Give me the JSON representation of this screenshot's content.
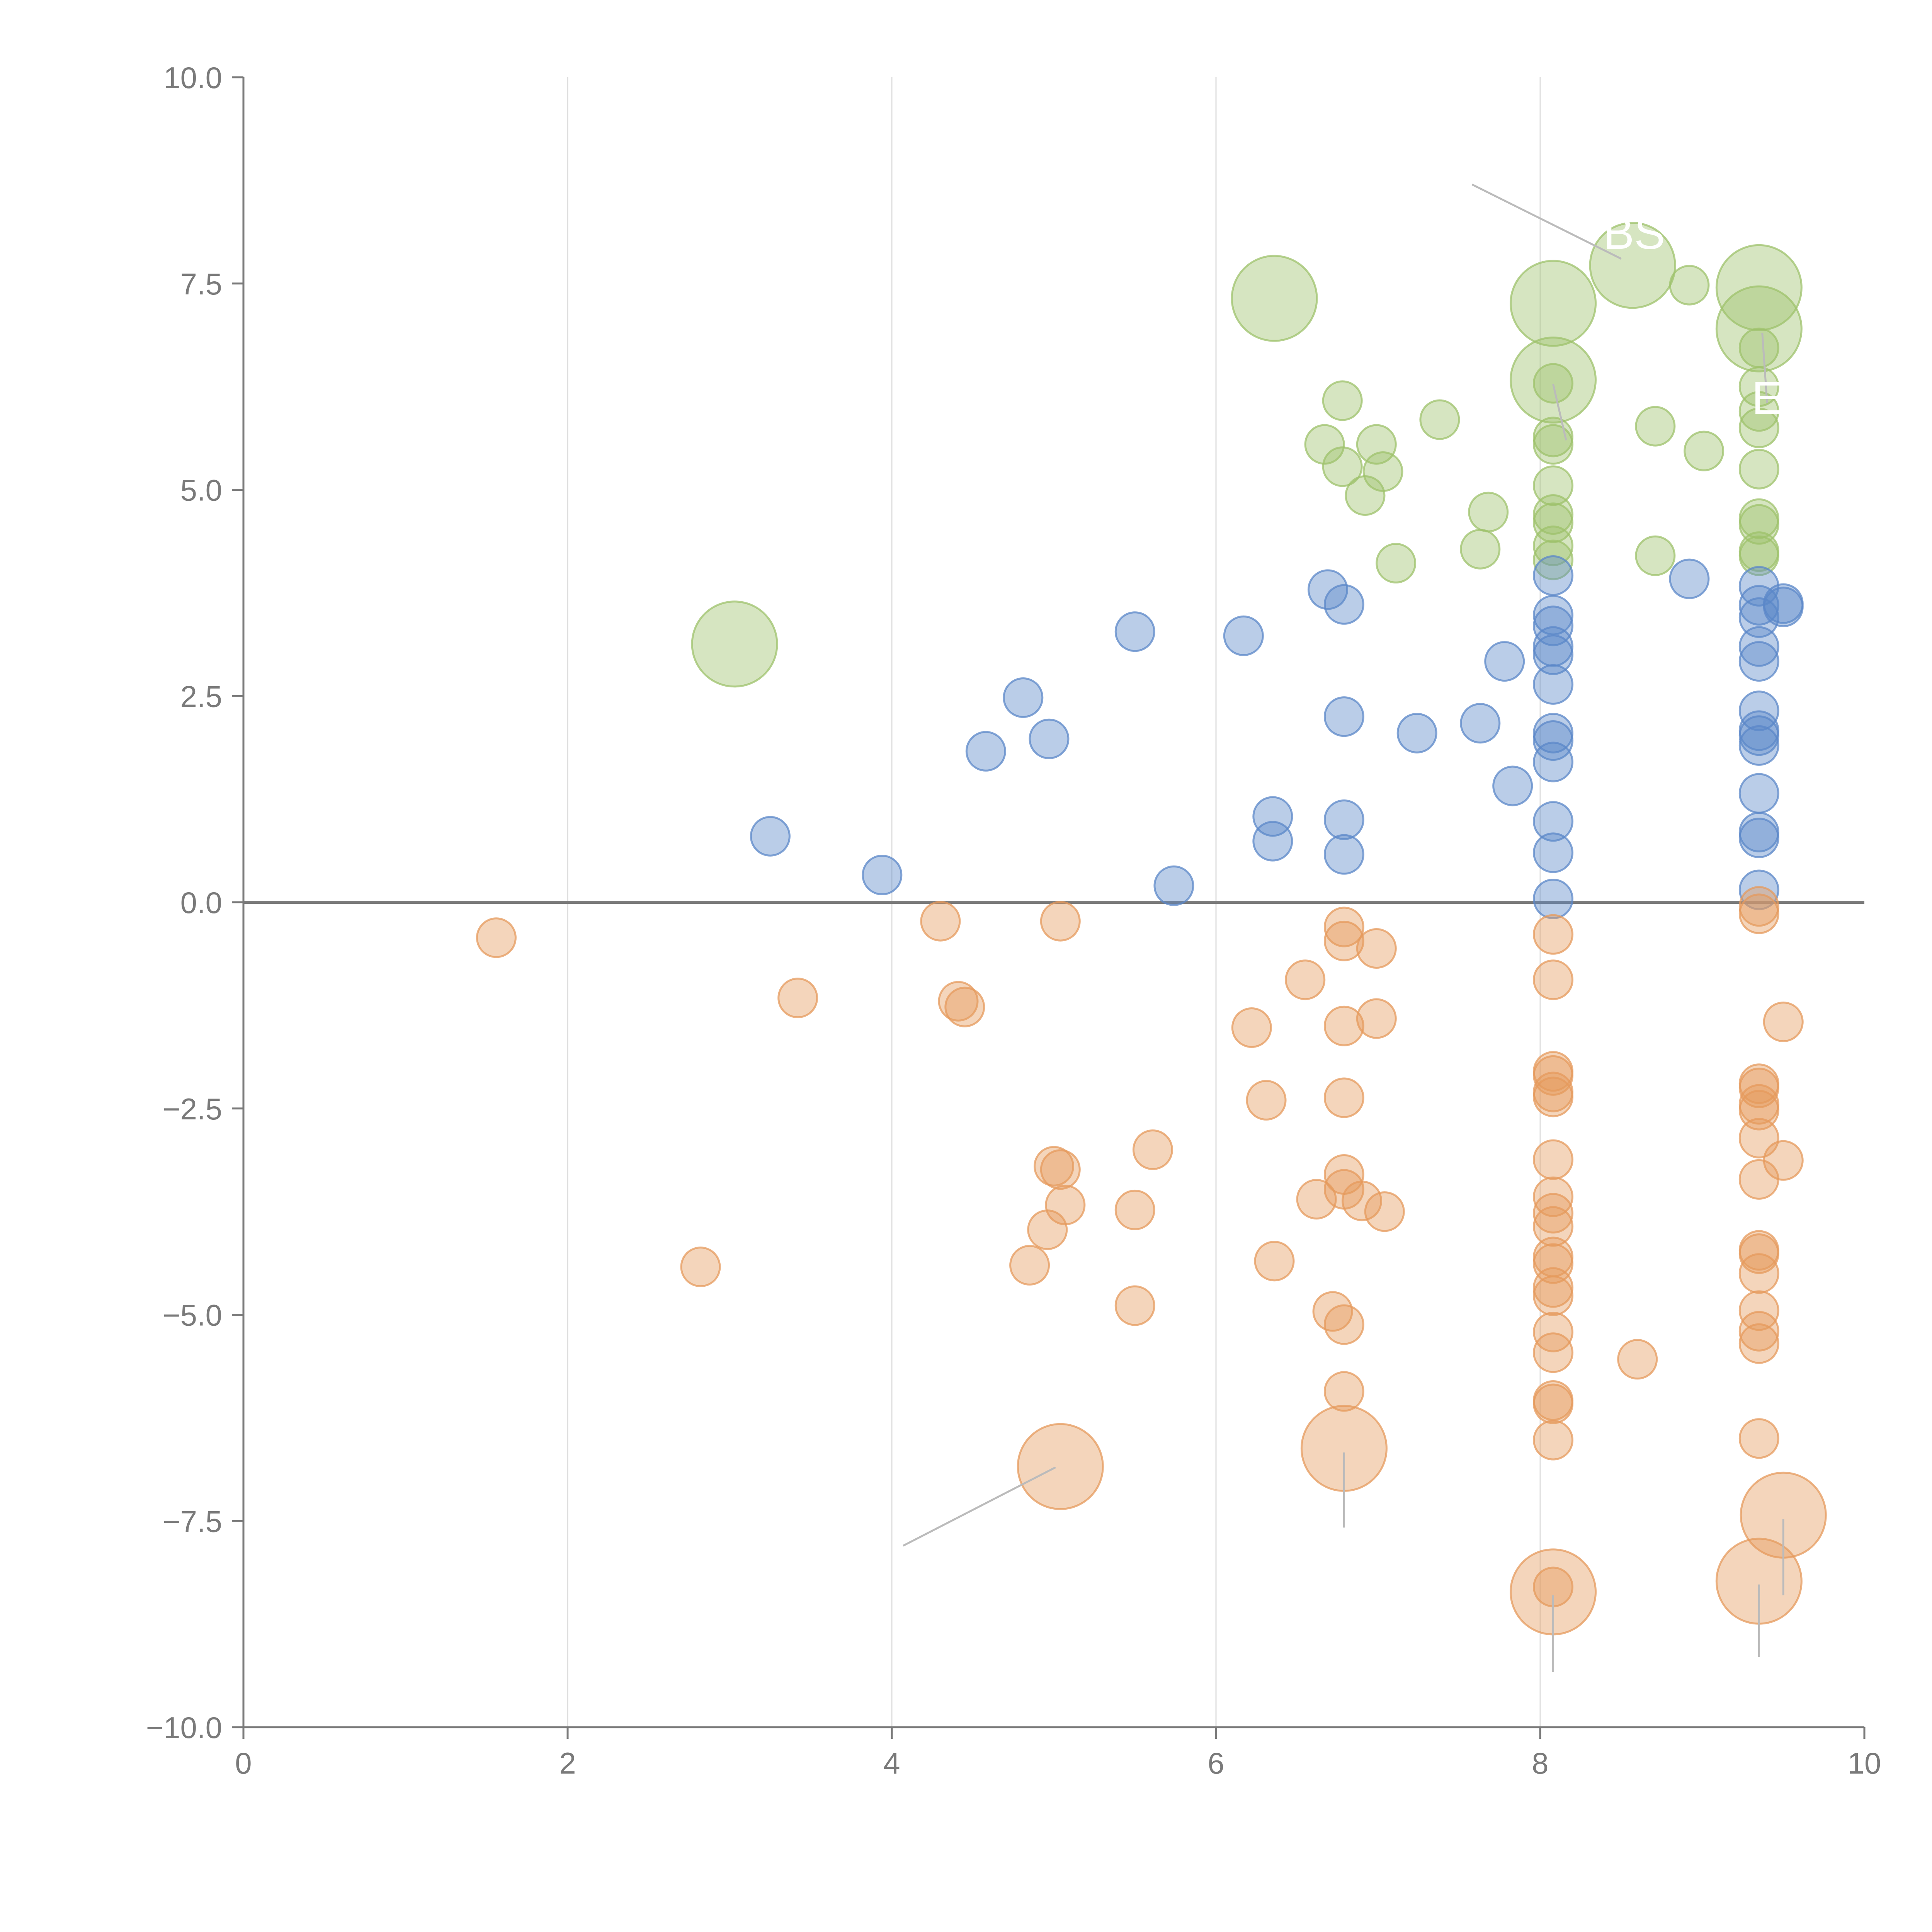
{
  "chart_data": {
    "type": "scatter",
    "subtype": "bubble",
    "title": "",
    "xlabel": "",
    "ylabel": "",
    "xlim": [
      0,
      10
    ],
    "ylim": [
      -10,
      10
    ],
    "x_ticks": [
      0,
      2,
      4,
      6,
      8,
      10
    ],
    "x_tick_labels": [
      "0",
      "2",
      "4",
      "6",
      "8",
      "10"
    ],
    "y_ticks": [
      10,
      7.5,
      5,
      2.5,
      0,
      -2.5,
      -5,
      -7.5,
      -10
    ],
    "y_tick_labels": [
      "10.0",
      "7.5",
      "5.0",
      "2.5",
      "0.0",
      "−2.5",
      "−5.0",
      "−7.5",
      "−10.0"
    ],
    "grid": {
      "vertical": true,
      "horizontal": false
    },
    "zero_line": 0,
    "legend": "none",
    "colors": {
      "green": "#9dc16b",
      "blue": "#5b87c8",
      "orange": "#e59a5c",
      "grid": "#dedede",
      "axis": "#7a7a7a",
      "leader": "#bbbbbb"
    },
    "series": [
      {
        "name": "green",
        "color": "#9dc16b",
        "points": [
          {
            "x": 3.03,
            "y": 3.13,
            "s": 2.2
          },
          {
            "x": 6.36,
            "y": 7.32,
            "s": 2.2
          },
          {
            "x": 8.08,
            "y": 7.26,
            "s": 2.2
          },
          {
            "x": 8.08,
            "y": 6.33,
            "s": 2.2
          },
          {
            "x": 8.57,
            "y": 7.72,
            "s": 2.2
          },
          {
            "x": 9.35,
            "y": 7.45,
            "s": 2.2
          },
          {
            "x": 9.35,
            "y": 6.95,
            "s": 2.2
          },
          {
            "x": 6.67,
            "y": 5.55,
            "s": 1
          },
          {
            "x": 6.78,
            "y": 6.08,
            "s": 1
          },
          {
            "x": 6.78,
            "y": 5.28,
            "s": 1
          },
          {
            "x": 6.92,
            "y": 4.93,
            "s": 1
          },
          {
            "x": 6.99,
            "y": 5.55,
            "s": 1
          },
          {
            "x": 7.03,
            "y": 5.22,
            "s": 1
          },
          {
            "x": 7.11,
            "y": 4.11,
            "s": 1
          },
          {
            "x": 7.38,
            "y": 5.85,
            "s": 1
          },
          {
            "x": 7.63,
            "y": 4.28,
            "s": 1
          },
          {
            "x": 7.68,
            "y": 4.73,
            "s": 1
          },
          {
            "x": 8.08,
            "y": 6.29,
            "s": 1
          },
          {
            "x": 8.08,
            "y": 5.64,
            "s": 1
          },
          {
            "x": 8.08,
            "y": 5.55,
            "s": 1
          },
          {
            "x": 8.08,
            "y": 5.05,
            "s": 1
          },
          {
            "x": 8.08,
            "y": 4.7,
            "s": 1
          },
          {
            "x": 8.08,
            "y": 4.6,
            "s": 1
          },
          {
            "x": 8.08,
            "y": 4.32,
            "s": 1
          },
          {
            "x": 8.08,
            "y": 4.15,
            "s": 1
          },
          {
            "x": 8.71,
            "y": 5.77,
            "s": 1
          },
          {
            "x": 8.71,
            "y": 4.2,
            "s": 1
          },
          {
            "x": 8.92,
            "y": 7.48,
            "s": 1
          },
          {
            "x": 9.01,
            "y": 5.47,
            "s": 1
          },
          {
            "x": 9.35,
            "y": 6.72,
            "s": 1
          },
          {
            "x": 9.35,
            "y": 6.25,
            "s": 1
          },
          {
            "x": 9.35,
            "y": 5.95,
            "s": 1
          },
          {
            "x": 9.35,
            "y": 5.75,
            "s": 1
          },
          {
            "x": 9.35,
            "y": 5.25,
            "s": 1
          },
          {
            "x": 9.35,
            "y": 4.65,
            "s": 1
          },
          {
            "x": 9.35,
            "y": 4.58,
            "s": 1
          },
          {
            "x": 9.35,
            "y": 4.25,
            "s": 1
          },
          {
            "x": 9.35,
            "y": 4.2,
            "s": 1
          }
        ]
      },
      {
        "name": "blue",
        "color": "#5b87c8",
        "points": [
          {
            "x": 3.25,
            "y": 0.8,
            "s": 1
          },
          {
            "x": 3.94,
            "y": 0.33,
            "s": 1
          },
          {
            "x": 4.58,
            "y": 1.83,
            "s": 1
          },
          {
            "x": 4.81,
            "y": 2.48,
            "s": 1
          },
          {
            "x": 4.97,
            "y": 1.98,
            "s": 1
          },
          {
            "x": 5.5,
            "y": 3.28,
            "s": 1
          },
          {
            "x": 5.74,
            "y": 0.2,
            "s": 1
          },
          {
            "x": 6.17,
            "y": 3.23,
            "s": 1
          },
          {
            "x": 6.35,
            "y": 1.04,
            "s": 1
          },
          {
            "x": 6.35,
            "y": 0.74,
            "s": 1
          },
          {
            "x": 6.69,
            "y": 3.79,
            "s": 1
          },
          {
            "x": 6.79,
            "y": 3.61,
            "s": 1
          },
          {
            "x": 6.79,
            "y": 2.25,
            "s": 1
          },
          {
            "x": 6.79,
            "y": 1.0,
            "s": 1
          },
          {
            "x": 6.79,
            "y": 0.58,
            "s": 1
          },
          {
            "x": 7.24,
            "y": 2.05,
            "s": 1
          },
          {
            "x": 7.63,
            "y": 2.17,
            "s": 1
          },
          {
            "x": 7.78,
            "y": 2.92,
            "s": 1
          },
          {
            "x": 7.83,
            "y": 1.41,
            "s": 1
          },
          {
            "x": 8.08,
            "y": 3.96,
            "s": 1
          },
          {
            "x": 8.08,
            "y": 3.48,
            "s": 1
          },
          {
            "x": 8.08,
            "y": 3.35,
            "s": 1
          },
          {
            "x": 8.08,
            "y": 3.1,
            "s": 1
          },
          {
            "x": 8.08,
            "y": 3.0,
            "s": 1
          },
          {
            "x": 8.08,
            "y": 2.64,
            "s": 1
          },
          {
            "x": 8.08,
            "y": 2.05,
            "s": 1
          },
          {
            "x": 8.08,
            "y": 1.96,
            "s": 1
          },
          {
            "x": 8.08,
            "y": 1.7,
            "s": 1
          },
          {
            "x": 8.08,
            "y": 0.98,
            "s": 1
          },
          {
            "x": 8.08,
            "y": 0.6,
            "s": 1
          },
          {
            "x": 8.08,
            "y": 0.04,
            "s": 1
          },
          {
            "x": 8.92,
            "y": 3.92,
            "s": 1
          },
          {
            "x": 9.35,
            "y": 3.83,
            "s": 1
          },
          {
            "x": 9.35,
            "y": 3.6,
            "s": 1
          },
          {
            "x": 9.35,
            "y": 3.45,
            "s": 1
          },
          {
            "x": 9.35,
            "y": 3.1,
            "s": 1
          },
          {
            "x": 9.35,
            "y": 2.92,
            "s": 1
          },
          {
            "x": 9.35,
            "y": 2.32,
            "s": 1
          },
          {
            "x": 9.35,
            "y": 2.08,
            "s": 1
          },
          {
            "x": 9.35,
            "y": 2.02,
            "s": 1
          },
          {
            "x": 9.35,
            "y": 1.9,
            "s": 1
          },
          {
            "x": 9.35,
            "y": 1.32,
            "s": 1
          },
          {
            "x": 9.35,
            "y": 0.85,
            "s": 1
          },
          {
            "x": 9.35,
            "y": 0.78,
            "s": 1
          },
          {
            "x": 9.35,
            "y": 0.15,
            "s": 1
          },
          {
            "x": 9.5,
            "y": 3.62,
            "s": 1
          },
          {
            "x": 9.5,
            "y": 3.58,
            "s": 1
          }
        ]
      },
      {
        "name": "orange",
        "color": "#e59a5c",
        "points": [
          {
            "x": 1.56,
            "y": -0.43,
            "s": 1
          },
          {
            "x": 2.82,
            "y": -4.42,
            "s": 1
          },
          {
            "x": 3.42,
            "y": -1.16,
            "s": 1
          },
          {
            "x": 4.3,
            "y": -0.23,
            "s": 1
          },
          {
            "x": 4.41,
            "y": -1.2,
            "s": 1
          },
          {
            "x": 4.45,
            "y": -1.27,
            "s": 1
          },
          {
            "x": 4.85,
            "y": -4.4,
            "s": 1
          },
          {
            "x": 4.96,
            "y": -3.97,
            "s": 1
          },
          {
            "x": 5.0,
            "y": -3.2,
            "s": 1
          },
          {
            "x": 5.04,
            "y": -3.24,
            "s": 1
          },
          {
            "x": 5.04,
            "y": -0.23,
            "s": 1
          },
          {
            "x": 5.07,
            "y": -3.67,
            "s": 1
          },
          {
            "x": 5.04,
            "y": -6.84,
            "s": 2.2
          },
          {
            "x": 5.5,
            "y": -3.73,
            "s": 1
          },
          {
            "x": 5.5,
            "y": -4.89,
            "s": 1
          },
          {
            "x": 5.61,
            "y": -3.0,
            "s": 1
          },
          {
            "x": 6.22,
            "y": -1.52,
            "s": 1
          },
          {
            "x": 6.31,
            "y": -2.4,
            "s": 1
          },
          {
            "x": 6.36,
            "y": -4.35,
            "s": 1
          },
          {
            "x": 6.55,
            "y": -0.94,
            "s": 1
          },
          {
            "x": 6.62,
            "y": -3.6,
            "s": 1
          },
          {
            "x": 6.72,
            "y": -4.96,
            "s": 1
          },
          {
            "x": 6.79,
            "y": -0.3,
            "s": 1
          },
          {
            "x": 6.79,
            "y": -0.47,
            "s": 1
          },
          {
            "x": 6.79,
            "y": -1.5,
            "s": 1
          },
          {
            "x": 6.79,
            "y": -2.37,
            "s": 1
          },
          {
            "x": 6.79,
            "y": -3.3,
            "s": 1
          },
          {
            "x": 6.79,
            "y": -3.48,
            "s": 1
          },
          {
            "x": 6.79,
            "y": -5.12,
            "s": 1
          },
          {
            "x": 6.79,
            "y": -5.93,
            "s": 1
          },
          {
            "x": 6.79,
            "y": -6.62,
            "s": 2.2
          },
          {
            "x": 6.9,
            "y": -3.62,
            "s": 1
          },
          {
            "x": 6.99,
            "y": -0.56,
            "s": 1
          },
          {
            "x": 6.99,
            "y": -1.41,
            "s": 1
          },
          {
            "x": 7.04,
            "y": -3.75,
            "s": 1
          },
          {
            "x": 8.08,
            "y": -0.39,
            "s": 1
          },
          {
            "x": 8.08,
            "y": -0.94,
            "s": 1
          },
          {
            "x": 8.08,
            "y": -2.05,
            "s": 1
          },
          {
            "x": 8.08,
            "y": -2.1,
            "s": 1
          },
          {
            "x": 8.08,
            "y": -2.3,
            "s": 1
          },
          {
            "x": 8.08,
            "y": -2.36,
            "s": 1
          },
          {
            "x": 8.08,
            "y": -3.12,
            "s": 1
          },
          {
            "x": 8.08,
            "y": -3.57,
            "s": 1
          },
          {
            "x": 8.08,
            "y": -3.77,
            "s": 1
          },
          {
            "x": 8.08,
            "y": -3.93,
            "s": 1
          },
          {
            "x": 8.08,
            "y": -4.3,
            "s": 1
          },
          {
            "x": 8.08,
            "y": -4.38,
            "s": 1
          },
          {
            "x": 8.08,
            "y": -4.67,
            "s": 1
          },
          {
            "x": 8.08,
            "y": -4.77,
            "s": 1
          },
          {
            "x": 8.08,
            "y": -5.21,
            "s": 1
          },
          {
            "x": 8.08,
            "y": -5.46,
            "s": 1
          },
          {
            "x": 8.08,
            "y": -6.04,
            "s": 1
          },
          {
            "x": 8.08,
            "y": -6.08,
            "s": 1
          },
          {
            "x": 8.08,
            "y": -6.52,
            "s": 1
          },
          {
            "x": 8.08,
            "y": -8.3,
            "s": 1
          },
          {
            "x": 8.08,
            "y": -8.36,
            "s": 2.2
          },
          {
            "x": 8.6,
            "y": -5.54,
            "s": 1
          },
          {
            "x": 9.35,
            "y": -0.05,
            "s": 1
          },
          {
            "x": 9.35,
            "y": -0.14,
            "s": 1
          },
          {
            "x": 9.35,
            "y": -2.2,
            "s": 1
          },
          {
            "x": 9.35,
            "y": -2.25,
            "s": 1
          },
          {
            "x": 9.35,
            "y": -2.45,
            "s": 1
          },
          {
            "x": 9.35,
            "y": -2.52,
            "s": 1
          },
          {
            "x": 9.35,
            "y": -2.86,
            "s": 1
          },
          {
            "x": 9.35,
            "y": -3.36,
            "s": 1
          },
          {
            "x": 9.35,
            "y": -4.22,
            "s": 1
          },
          {
            "x": 9.35,
            "y": -4.26,
            "s": 1
          },
          {
            "x": 9.35,
            "y": -4.5,
            "s": 1
          },
          {
            "x": 9.35,
            "y": -4.95,
            "s": 1
          },
          {
            "x": 9.35,
            "y": -5.2,
            "s": 1
          },
          {
            "x": 9.35,
            "y": -5.35,
            "s": 1
          },
          {
            "x": 9.35,
            "y": -6.5,
            "s": 1
          },
          {
            "x": 9.35,
            "y": -8.23,
            "s": 2.2
          },
          {
            "x": 9.5,
            "y": -1.45,
            "s": 1
          },
          {
            "x": 9.5,
            "y": -3.13,
            "s": 1
          },
          {
            "x": 9.5,
            "y": -7.43,
            "s": 2.2
          }
        ]
      }
    ],
    "leader_lines": [
      {
        "x1": 7.58,
        "y1": 8.7,
        "x2": 8.5,
        "y2": 7.8
      },
      {
        "x1": 9.37,
        "y1": 6.9,
        "x2": 9.4,
        "y2": 6.05
      },
      {
        "x1": 8.08,
        "y1": 6.28,
        "x2": 8.16,
        "y2": 5.6
      },
      {
        "x1": 5.01,
        "y1": -6.85,
        "x2": 4.07,
        "y2": -7.8
      },
      {
        "x1": 6.79,
        "y1": -6.67,
        "x2": 6.79,
        "y2": -7.58
      },
      {
        "x1": 8.08,
        "y1": -8.4,
        "x2": 8.08,
        "y2": -9.33
      },
      {
        "x1": 9.35,
        "y1": -8.27,
        "x2": 9.35,
        "y2": -9.15
      },
      {
        "x1": 9.5,
        "y1": -7.48,
        "x2": 9.5,
        "y2": -8.4
      }
    ],
    "annotations": [
      {
        "text": "BS",
        "x": 8.58,
        "y": 7.92
      },
      {
        "text": "E",
        "x": 9.4,
        "y": 5.92
      }
    ]
  }
}
